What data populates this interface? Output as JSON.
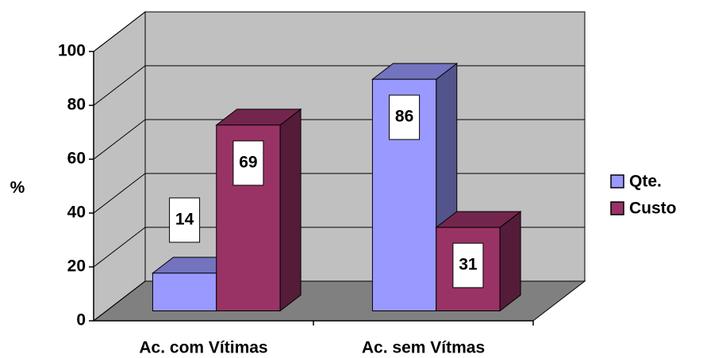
{
  "chart_data": {
    "type": "bar3d",
    "ylabel": "%",
    "categories": [
      "Ac. com Vítimas",
      "Ac. sem Vítmas"
    ],
    "series": [
      {
        "name": "Qte.",
        "color": "#9999ff",
        "values": [
          14,
          86
        ]
      },
      {
        "name": "Custo",
        "color": "#993366",
        "values": [
          69,
          31
        ]
      }
    ],
    "ylim": [
      0,
      100
    ],
    "yticks": [
      0,
      20,
      40,
      60,
      80,
      100
    ],
    "grid": true,
    "legend": "right"
  }
}
